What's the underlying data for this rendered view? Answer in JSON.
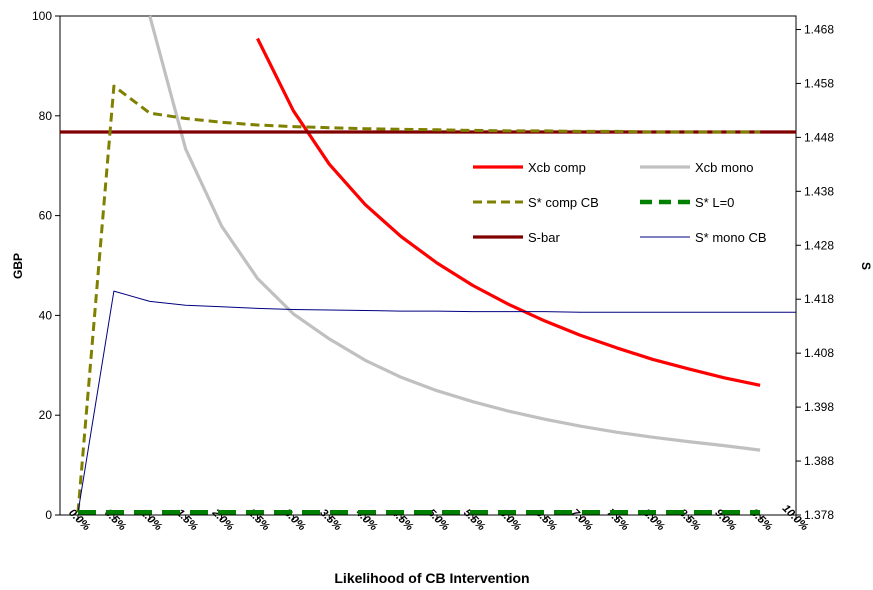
{
  "chart_data": {
    "type": "line",
    "title": "",
    "xlabel": "Likelihood of CB Intervention",
    "ylabel": "GBP",
    "y2label": "S",
    "x": [
      0.0,
      0.5,
      1.0,
      1.5,
      2.0,
      2.5,
      3.0,
      3.5,
      4.0,
      4.5,
      5.0,
      5.5,
      6.0,
      6.5,
      7.0,
      7.5,
      8.0,
      8.5,
      9.0,
      9.5
    ],
    "x_tick_labels": [
      "0.0%",
      "0.5%",
      "1.0%",
      "1.5%",
      "2.0%",
      "2.5%",
      "3.0%",
      "3.5%",
      "4.0%",
      "4.5%",
      "5.0%",
      "5.5%",
      "6.0%",
      "6.5%",
      "7.0%",
      "7.5%",
      "8.0%",
      "8.5%",
      "9.0%",
      "9.5%",
      "10.0%"
    ],
    "y_ticks": [
      "0",
      "20",
      "40",
      "60",
      "80",
      "100"
    ],
    "y2_ticks": [
      "1.378",
      "1.388",
      "1.398",
      "1.408",
      "1.418",
      "1.428",
      "1.438",
      "1.448",
      "1.458",
      "1.468"
    ],
    "ylim": [
      0,
      100
    ],
    "y2lim": [
      1.378,
      1.4705
    ],
    "xlim": [
      -0.25,
      10.0
    ],
    "grid": false,
    "legend_position": "inside-right",
    "series": [
      {
        "name": "Xcb comp",
        "axis": "left",
        "color": "#ff0000",
        "style": "solid-thick",
        "values": [
          null,
          null,
          null,
          null,
          null,
          95.5,
          81,
          70.3,
          62.2,
          55.8,
          50.5,
          46,
          42.2,
          38.9,
          36,
          33.5,
          31.2,
          29.3,
          27.5,
          26
        ]
      },
      {
        "name": "Xcb mono",
        "axis": "left",
        "color": "#c0c0c0",
        "style": "solid-thick",
        "values": [
          null,
          null,
          100,
          73.3,
          57.9,
          47.4,
          40.3,
          35.3,
          31,
          27.6,
          24.9,
          22.7,
          20.8,
          19.2,
          17.8,
          16.6,
          15.6,
          14.7,
          13.9,
          13
        ]
      },
      {
        "name": "S* comp CB",
        "axis": "right",
        "color": "#808000",
        "style": "dashed",
        "values": [
          1.3785,
          1.4575,
          1.4525,
          1.4515,
          1.4508,
          1.4503,
          1.45,
          1.4498,
          1.4496,
          1.4495,
          1.4494,
          1.4493,
          1.4492,
          1.4492,
          1.4491,
          1.4491,
          1.449,
          1.449,
          1.449,
          1.449
        ]
      },
      {
        "name": "S* L=0",
        "axis": "right",
        "color": "#008000",
        "style": "dashed-thick",
        "values": [
          1.3785,
          1.3785,
          1.3785,
          1.3785,
          1.3785,
          1.3785,
          1.3785,
          1.3785,
          1.3785,
          1.3785,
          1.3785,
          1.3785,
          1.3785,
          1.3785,
          1.3785,
          1.3785,
          1.3785,
          1.3785,
          1.3785,
          1.3785
        ]
      },
      {
        "name": "S-bar",
        "axis": "right",
        "color": "#800000",
        "style": "solid-thick",
        "values": [
          1.449,
          1.449,
          1.449,
          1.449,
          1.449,
          1.449,
          1.449,
          1.449,
          1.449,
          1.449,
          1.449,
          1.449,
          1.449,
          1.449,
          1.449,
          1.449,
          1.449,
          1.449,
          1.449,
          1.449
        ]
      },
      {
        "name": "S* mono CB",
        "axis": "right",
        "color": "#000080",
        "style": "solid-thin",
        "values": [
          1.3785,
          1.4195,
          1.4176,
          1.4169,
          1.4166,
          1.4163,
          1.4161,
          1.416,
          1.4159,
          1.4158,
          1.4158,
          1.4157,
          1.4157,
          1.4157,
          1.4156,
          1.4156,
          1.4156,
          1.4156,
          1.4156,
          1.4156
        ]
      }
    ]
  }
}
